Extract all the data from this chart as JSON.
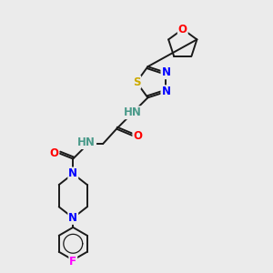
{
  "background_color": "#ebebeb",
  "bond_color": "#1a1a1a",
  "atom_colors": {
    "N": "#0000FF",
    "O": "#FF0000",
    "S": "#ccaa00",
    "F": "#FF00FF",
    "C": "#1a1a1a",
    "NH": "#4a9a8a"
  },
  "figsize": [
    3.0,
    3.0
  ],
  "dpi": 100,
  "xlim": [
    0,
    10
  ],
  "ylim": [
    0,
    10
  ]
}
